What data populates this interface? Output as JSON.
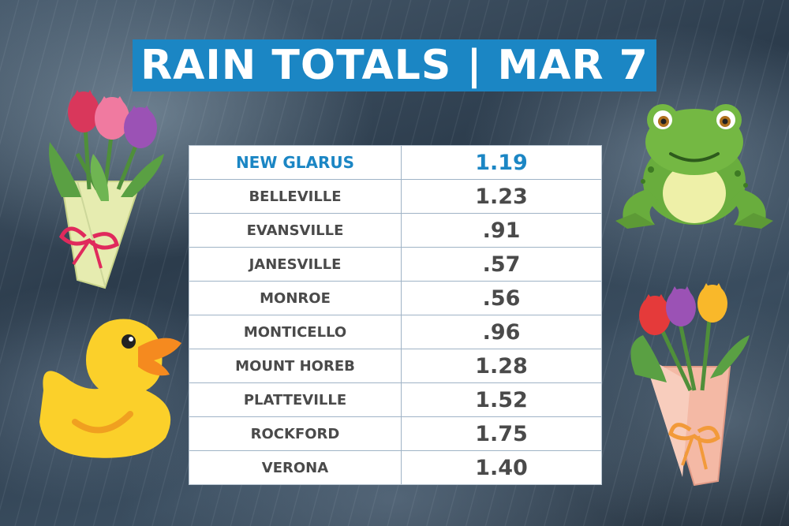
{
  "title": "RAIN TOTALS | MAR 7",
  "colors": {
    "banner": "#1b86c4",
    "highlight_text": "#1b86c4",
    "body_text": "#4a4a4a"
  },
  "rows": [
    {
      "location": "NEW GLARUS",
      "total": "1.19"
    },
    {
      "location": "BELLEVILLE",
      "total": "1.23"
    },
    {
      "location": "EVANSVILLE",
      "total": ".91"
    },
    {
      "location": "JANESVILLE",
      "total": ".57"
    },
    {
      "location": "MONROE",
      "total": ".56"
    },
    {
      "location": "MONTICELLO",
      "total": ".96"
    },
    {
      "location": "MOUNT HOREB",
      "total": "1.28"
    },
    {
      "location": "PLATTEVILLE",
      "total": "1.52"
    },
    {
      "location": "ROCKFORD",
      "total": "1.75"
    },
    {
      "location": "VERONA",
      "total": "1.40"
    }
  ],
  "decorations": [
    "tulip-bouquet-left-icon",
    "rubber-duck-icon",
    "frog-icon",
    "tulip-bouquet-right-icon"
  ]
}
